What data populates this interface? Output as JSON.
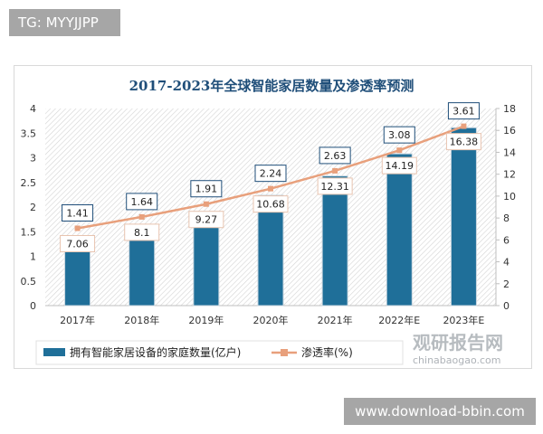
{
  "tag": "TG: MYYJJPP",
  "watermark": "www.download-bbin.com",
  "brand": {
    "logo": "观研报告网",
    "domain": "chinabaogao.com"
  },
  "chart_data": {
    "type": "bar+line",
    "title": "2017-2023年全球智能家居数量及渗透率预测",
    "categories": [
      "2017年",
      "2018年",
      "2019年",
      "2020年",
      "2021年",
      "2022年E",
      "2023年E"
    ],
    "series": [
      {
        "name": "拥有智能家居设备的家庭数量(亿户)",
        "type": "bar",
        "axis": "left",
        "values": [
          1.41,
          1.64,
          1.91,
          2.24,
          2.63,
          3.08,
          3.61
        ],
        "color": "#1f6f99"
      },
      {
        "name": "渗透率(%)",
        "type": "line",
        "axis": "right",
        "values": [
          7.06,
          8.1,
          9.27,
          10.68,
          12.31,
          14.19,
          16.38
        ],
        "color": "#e8a07c"
      }
    ],
    "y_left": {
      "range": [
        0,
        4
      ],
      "ticks": [
        "0",
        "0.5",
        "1",
        "1.5",
        "2",
        "2.5",
        "3",
        "3.5",
        "4"
      ]
    },
    "y_right": {
      "range": [
        0,
        18
      ],
      "ticks": [
        "0",
        "2",
        "4",
        "6",
        "8",
        "10",
        "12",
        "14",
        "16",
        "18"
      ]
    },
    "legend": "bottom",
    "grid": false
  }
}
